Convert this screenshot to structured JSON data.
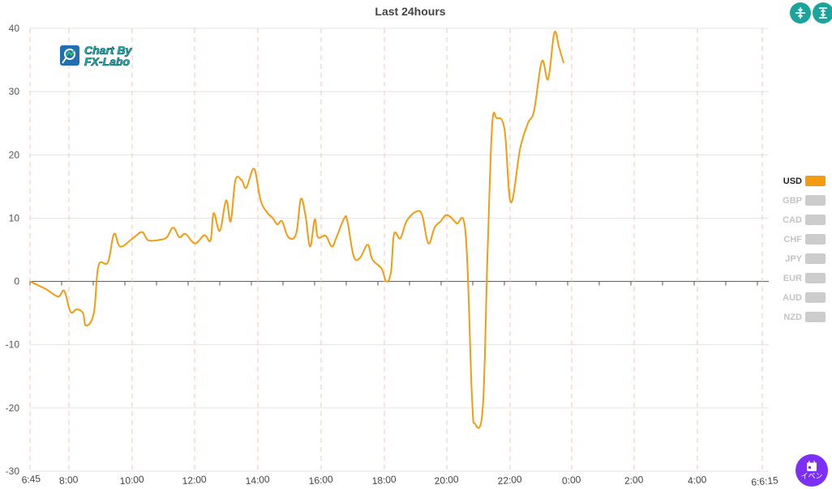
{
  "chart_data": {
    "type": "line",
    "title": "Last 24hours",
    "ylim": [
      -30,
      40
    ],
    "y_ticks": [
      "40",
      "30",
      "20",
      "10",
      "0",
      "-10",
      "-20",
      "-30"
    ],
    "x_ticks": [
      "6:45",
      "8:00",
      "10:00",
      "12:00",
      "14:00",
      "16:00",
      "18:00",
      "20:00",
      "22:00",
      "0:00",
      "2:00",
      "4:00",
      "6:6:15"
    ],
    "x_range": [
      "6:45",
      "6:15"
    ],
    "grid": true,
    "legend_position": "right",
    "active_series": "USD",
    "legend": [
      "USD",
      "GBP",
      "CAD",
      "CHF",
      "JPY",
      "EUR",
      "AUD",
      "NZD"
    ],
    "series": [
      {
        "name": "USD",
        "color": "#f39c12",
        "points": [
          [
            0.0,
            0
          ],
          [
            0.5,
            -1.2
          ],
          [
            0.9,
            -2.4
          ],
          [
            1.1,
            -1.5
          ],
          [
            1.3,
            -4.8
          ],
          [
            1.5,
            -4.4
          ],
          [
            1.7,
            -5.0
          ],
          [
            1.8,
            -7.0
          ],
          [
            2.05,
            -5.0
          ],
          [
            2.2,
            2.5
          ],
          [
            2.5,
            3.0
          ],
          [
            2.7,
            7.5
          ],
          [
            2.9,
            5.5
          ],
          [
            3.3,
            6.8
          ],
          [
            3.6,
            7.8
          ],
          [
            3.8,
            6.5
          ],
          [
            4.2,
            6.6
          ],
          [
            4.4,
            7.0
          ],
          [
            4.6,
            8.5
          ],
          [
            4.8,
            7.0
          ],
          [
            5.0,
            7.5
          ],
          [
            5.3,
            6.0
          ],
          [
            5.6,
            7.3
          ],
          [
            5.8,
            6.5
          ],
          [
            5.9,
            10.8
          ],
          [
            6.1,
            8.0
          ],
          [
            6.3,
            12.8
          ],
          [
            6.45,
            9.5
          ],
          [
            6.6,
            16.0
          ],
          [
            6.8,
            16.0
          ],
          [
            6.95,
            14.8
          ],
          [
            7.2,
            17.8
          ],
          [
            7.4,
            13.0
          ],
          [
            7.6,
            11.0
          ],
          [
            7.8,
            10.0
          ],
          [
            7.95,
            9.0
          ],
          [
            8.1,
            9.5
          ],
          [
            8.3,
            7.0
          ],
          [
            8.55,
            7.5
          ],
          [
            8.7,
            13.0
          ],
          [
            8.85,
            10.5
          ],
          [
            9.0,
            5.5
          ],
          [
            9.15,
            9.8
          ],
          [
            9.25,
            7.0
          ],
          [
            9.5,
            7.2
          ],
          [
            9.7,
            5.5
          ],
          [
            9.85,
            7.0
          ],
          [
            10.1,
            10.0
          ],
          [
            10.2,
            9.5
          ],
          [
            10.4,
            4.0
          ],
          [
            10.6,
            3.7
          ],
          [
            10.85,
            5.8
          ],
          [
            11.0,
            3.5
          ],
          [
            11.3,
            2.0
          ],
          [
            11.45,
            0
          ],
          [
            11.6,
            1.5
          ],
          [
            11.7,
            7.5
          ],
          [
            11.9,
            6.8
          ],
          [
            12.1,
            9.5
          ],
          [
            12.4,
            11.0
          ],
          [
            12.6,
            10.5
          ],
          [
            12.8,
            6.0
          ],
          [
            13.0,
            8.5
          ],
          [
            13.2,
            9.5
          ],
          [
            13.4,
            10.5
          ],
          [
            13.7,
            9.2
          ],
          [
            14.0,
            7.5
          ],
          [
            14.2,
            -18.0
          ],
          [
            14.3,
            -22.5
          ],
          [
            14.55,
            -20.0
          ],
          [
            14.7,
            4.0
          ],
          [
            14.85,
            24.5
          ],
          [
            15.0,
            25.8
          ],
          [
            15.25,
            24.0
          ],
          [
            15.45,
            12.5
          ],
          [
            15.75,
            21.0
          ],
          [
            16.0,
            25.0
          ],
          [
            16.2,
            27.0
          ],
          [
            16.45,
            34.8
          ],
          [
            16.65,
            32.0
          ],
          [
            16.85,
            39.3
          ],
          [
            17.0,
            37.0
          ],
          [
            17.15,
            34.5
          ]
        ]
      }
    ]
  },
  "buttons": {
    "collapse_icon": "collapse-vertical-icon",
    "expand_icon": "expand-vertical-icon",
    "event_label": "イベン",
    "event_icon": "calendar-icon"
  },
  "logo": {
    "line1": "Chart By",
    "line2": "FX-Labo"
  }
}
